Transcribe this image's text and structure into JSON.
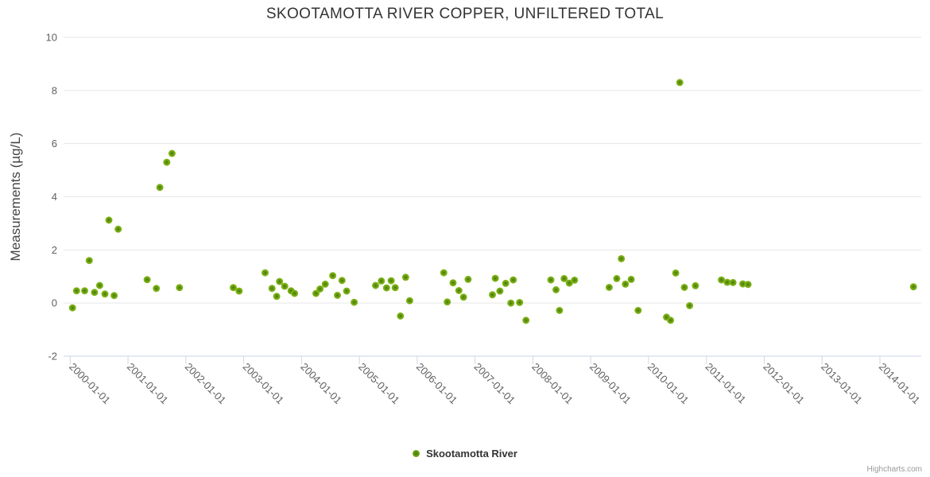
{
  "chart": {
    "credits": "Highcharts.com"
  },
  "colors": {
    "marker_outer": "#8bbc21",
    "marker_mid": "#6ba211",
    "marker_inner": "#47740a",
    "axis_line": "#ccd6eb",
    "grid_line": "#e6e6e6",
    "tick_label": "#606060",
    "axis_title": "#444444",
    "title": "#333333"
  },
  "chart_data": {
    "type": "scatter",
    "title": "SKOOTAMOTTA RIVER COPPER, UNFILTERED TOTAL",
    "xlabel": "",
    "ylabel": "Measurements (µg/L)",
    "xlim": [
      1999.886,
      2014.715
    ],
    "ylim": [
      -2,
      10
    ],
    "grid": true,
    "legend_position": "bottom-center",
    "xticks": [
      {
        "value": 2000,
        "label": "2000-01-01"
      },
      {
        "value": 2001,
        "label": "2001-01-01"
      },
      {
        "value": 2002,
        "label": "2002-01-01"
      },
      {
        "value": 2003,
        "label": "2003-01-01"
      },
      {
        "value": 2004,
        "label": "2004-01-01"
      },
      {
        "value": 2005,
        "label": "2005-01-01"
      },
      {
        "value": 2006,
        "label": "2006-01-01"
      },
      {
        "value": 2007,
        "label": "2007-01-01"
      },
      {
        "value": 2008,
        "label": "2008-01-01"
      },
      {
        "value": 2009,
        "label": "2009-01-01"
      },
      {
        "value": 2010,
        "label": "2010-01-01"
      },
      {
        "value": 2011,
        "label": "2011-01-01"
      },
      {
        "value": 2012,
        "label": "2012-01-01"
      },
      {
        "value": 2013,
        "label": "2013-01-01"
      },
      {
        "value": 2014,
        "label": "2014-01-01"
      }
    ],
    "yticks": [
      -2,
      0,
      2,
      4,
      6,
      8,
      10
    ],
    "series": [
      {
        "name": "Skootamotta River",
        "points": [
          [
            2000.04,
            -0.18
          ],
          [
            2000.11,
            0.46
          ],
          [
            2000.25,
            0.46
          ],
          [
            2000.33,
            1.6
          ],
          [
            2000.42,
            0.4
          ],
          [
            2000.51,
            0.66
          ],
          [
            2000.6,
            0.34
          ],
          [
            2000.67,
            3.12
          ],
          [
            2000.76,
            0.28
          ],
          [
            2000.83,
            2.78
          ],
          [
            2001.33,
            0.88
          ],
          [
            2001.49,
            0.55
          ],
          [
            2001.55,
            4.35
          ],
          [
            2001.67,
            5.3
          ],
          [
            2001.76,
            5.63
          ],
          [
            2001.89,
            0.58
          ],
          [
            2002.82,
            0.58
          ],
          [
            2002.92,
            0.45
          ],
          [
            2003.37,
            1.14
          ],
          [
            2003.49,
            0.55
          ],
          [
            2003.57,
            0.25
          ],
          [
            2003.62,
            0.81
          ],
          [
            2003.71,
            0.63
          ],
          [
            2003.82,
            0.46
          ],
          [
            2003.88,
            0.36
          ],
          [
            2004.25,
            0.36
          ],
          [
            2004.32,
            0.53
          ],
          [
            2004.41,
            0.71
          ],
          [
            2004.54,
            1.03
          ],
          [
            2004.62,
            0.29
          ],
          [
            2004.7,
            0.85
          ],
          [
            2004.78,
            0.45
          ],
          [
            2004.91,
            0.03
          ],
          [
            2005.28,
            0.66
          ],
          [
            2005.38,
            0.83
          ],
          [
            2005.47,
            0.57
          ],
          [
            2005.55,
            0.84
          ],
          [
            2005.62,
            0.58
          ],
          [
            2005.71,
            -0.49
          ],
          [
            2005.8,
            0.97
          ],
          [
            2005.87,
            0.09
          ],
          [
            2006.46,
            1.14
          ],
          [
            2006.52,
            0.04
          ],
          [
            2006.62,
            0.76
          ],
          [
            2006.72,
            0.47
          ],
          [
            2006.8,
            0.22
          ],
          [
            2006.88,
            0.89
          ],
          [
            2007.3,
            0.31
          ],
          [
            2007.35,
            0.93
          ],
          [
            2007.43,
            0.45
          ],
          [
            2007.53,
            0.74
          ],
          [
            2007.62,
            0.0
          ],
          [
            2007.66,
            0.87
          ],
          [
            2007.77,
            0.02
          ],
          [
            2007.88,
            -0.65
          ],
          [
            2008.31,
            0.87
          ],
          [
            2008.4,
            0.5
          ],
          [
            2008.46,
            -0.28
          ],
          [
            2008.54,
            0.92
          ],
          [
            2008.63,
            0.75
          ],
          [
            2008.72,
            0.86
          ],
          [
            2009.32,
            0.59
          ],
          [
            2009.45,
            0.92
          ],
          [
            2009.53,
            1.67
          ],
          [
            2009.6,
            0.71
          ],
          [
            2009.7,
            0.89
          ],
          [
            2009.82,
            -0.28
          ],
          [
            2010.31,
            -0.53
          ],
          [
            2010.38,
            -0.65
          ],
          [
            2010.47,
            1.13
          ],
          [
            2010.54,
            8.3
          ],
          [
            2010.62,
            0.59
          ],
          [
            2010.71,
            -0.1
          ],
          [
            2010.81,
            0.65
          ],
          [
            2011.26,
            0.87
          ],
          [
            2011.36,
            0.78
          ],
          [
            2011.46,
            0.77
          ],
          [
            2011.63,
            0.72
          ],
          [
            2011.72,
            0.7
          ],
          [
            2014.58,
            0.61
          ]
        ]
      }
    ]
  }
}
